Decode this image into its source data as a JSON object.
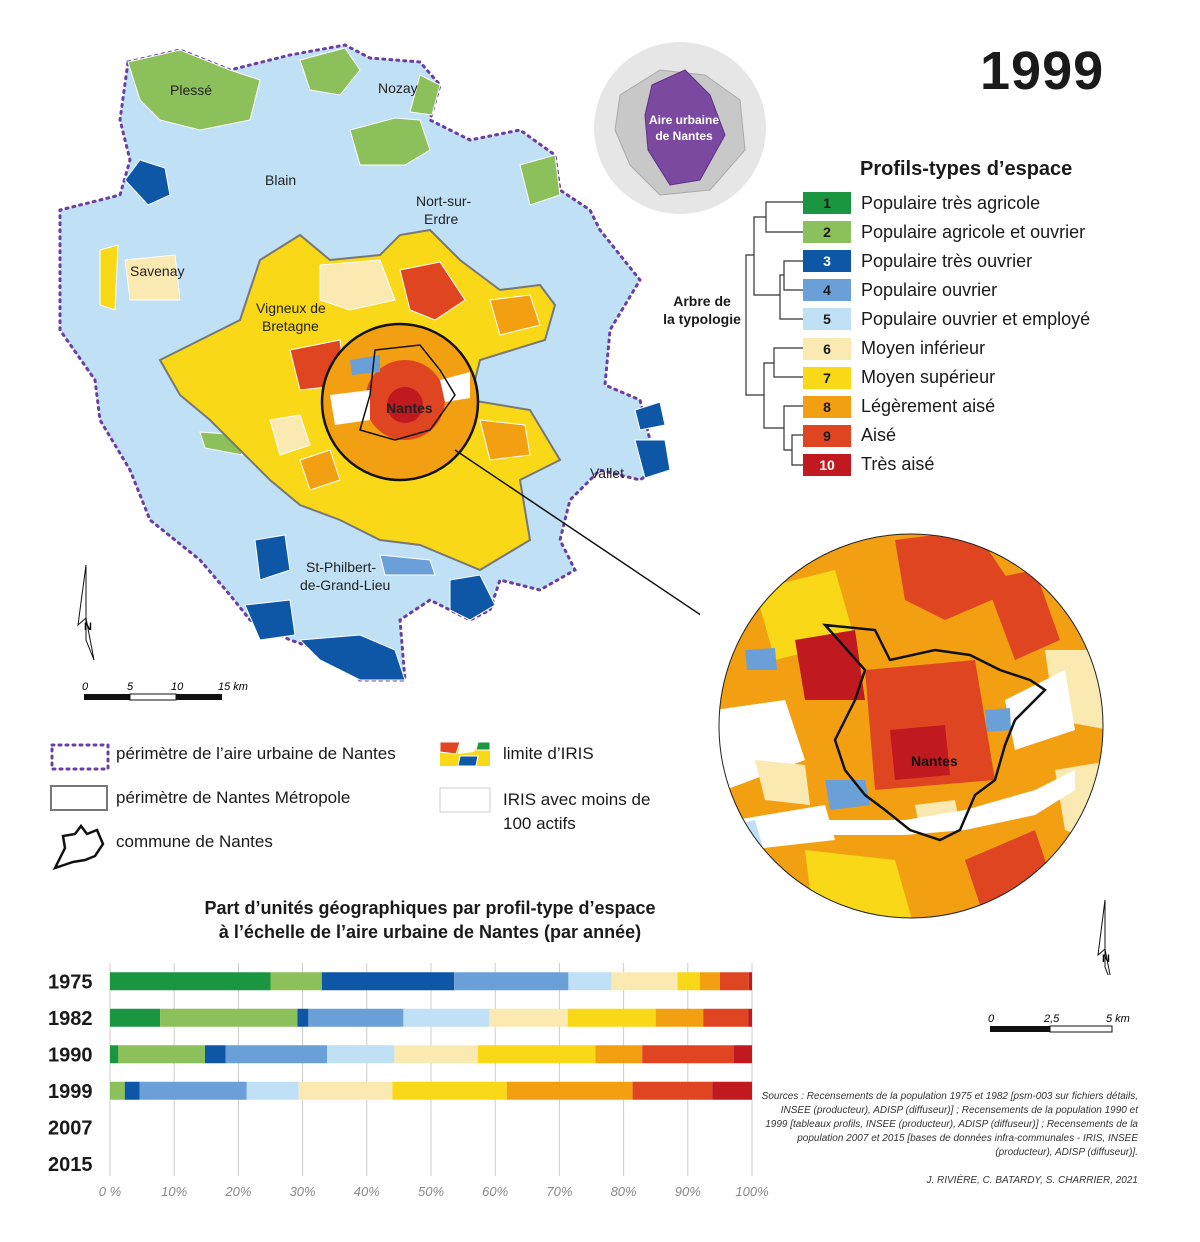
{
  "title_year": "1999",
  "locator": {
    "label_line1": "Aire urbaine",
    "label_line2": "de Nantes"
  },
  "profiles": {
    "title": "Profils-types d’espace",
    "tree_label_line1": "Arbre de",
    "tree_label_line2": "la typologie",
    "items": [
      {
        "num": "1",
        "label": "Populaire très agricole",
        "color": "#1a9641"
      },
      {
        "num": "2",
        "label": "Populaire agricole et ouvrier",
        "color": "#8cc05a"
      },
      {
        "num": "3",
        "label": "Populaire très ouvrier",
        "color": "#0e57a6"
      },
      {
        "num": "4",
        "label": "Populaire ouvrier",
        "color": "#6a9fd8"
      },
      {
        "num": "5",
        "label": "Populaire ouvrier et employé",
        "color": "#bfe0f5"
      },
      {
        "num": "6",
        "label": "Moyen inférieur",
        "color": "#fbe9b2"
      },
      {
        "num": "7",
        "label": "Moyen supérieur",
        "color": "#f8d817"
      },
      {
        "num": "8",
        "label": "Légèrement aisé",
        "color": "#f2a012"
      },
      {
        "num": "9",
        "label": "Aisé",
        "color": "#e04521"
      },
      {
        "num": "10",
        "label": "Très aisé",
        "color": "#c0191f"
      }
    ]
  },
  "places": {
    "plesse": "Plessé",
    "nozay": "Nozay",
    "blain": "Blain",
    "nort1": "Nort-sur-",
    "nort2": "Erdre",
    "savenay": "Savenay",
    "vigneux1": "Vigneux de",
    "vigneux2": "Bretagne",
    "nantes": "Nantes",
    "vallet": "Vallet",
    "stphil1": "St-Philbert-",
    "stphil2": "de-Grand-Lieu"
  },
  "scale_main": {
    "t0": "0",
    "t1": "5",
    "t2": "10",
    "t3": "15 km"
  },
  "scale_zoom": {
    "t0": "0",
    "t1": "2,5",
    "t2": "5 km"
  },
  "north": "N",
  "legend": {
    "perimeter_aire": "périmètre de l’aire urbaine de Nantes",
    "perimeter_metro": "périmètre de Nantes Métropole",
    "commune": "commune de Nantes",
    "iris_limit": "limite d’IRIS",
    "iris_low_1": "IRIS avec moins de",
    "iris_low_2": "100 actifs"
  },
  "chart_data": {
    "type": "bar",
    "orientation": "horizontal-stacked-percent",
    "title_line1": "Part d’unités géographiques par profil-type d’espace",
    "title_line2": "à l’échelle de l’aire urbaine de Nantes (par année)",
    "categories": [
      "1975",
      "1982",
      "1990",
      "1999",
      "2007",
      "2015"
    ],
    "xlim": [
      0,
      100
    ],
    "xticks": [
      "0 %",
      "10%",
      "20%",
      "30%",
      "40%",
      "50%",
      "60%",
      "70%",
      "80%",
      "90%",
      "100%"
    ],
    "grid": true,
    "series": [
      {
        "name": "1",
        "values": [
          25,
          7.8,
          1.3,
          0,
          null,
          null
        ]
      },
      {
        "name": "2",
        "values": [
          8,
          21.4,
          13.5,
          2.3,
          null,
          null
        ]
      },
      {
        "name": "3",
        "values": [
          20.6,
          1.7,
          3.2,
          2.3,
          null,
          null
        ]
      },
      {
        "name": "4",
        "values": [
          17.8,
          14.8,
          15.8,
          16.7,
          null,
          null
        ]
      },
      {
        "name": "5",
        "values": [
          6.7,
          13.4,
          10.5,
          8.1,
          null,
          null
        ]
      },
      {
        "name": "6",
        "values": [
          10.3,
          12.2,
          13,
          14.6,
          null,
          null
        ]
      },
      {
        "name": "7",
        "values": [
          3.5,
          13.7,
          18.3,
          17.8,
          null,
          null
        ]
      },
      {
        "name": "8",
        "values": [
          3.1,
          7.4,
          7.3,
          19.6,
          null,
          null
        ]
      },
      {
        "name": "9",
        "values": [
          4.5,
          7,
          14.3,
          12.4,
          null,
          null
        ]
      },
      {
        "name": "10",
        "values": [
          0.5,
          0.6,
          2.8,
          6.2,
          null,
          null
        ]
      }
    ]
  },
  "sources": "Sources : Recensements de la population 1975 et 1982 [psm-003 sur fichiers détails, INSEE (producteur), ADISP (diffuseur)] ; Recensements de la population 1990 et 1999 [tableaux profils, INSEE (producteur), ADISP (diffuseur)] ; Recensements de la population 2007 et 2015 [bases de données infra-communales - IRIS, INSEE (producteur), ADISP (diffuseur)].",
  "authors": "J. RIVIÈRE, C. BATARDY, S. CHARRIER, 2021"
}
